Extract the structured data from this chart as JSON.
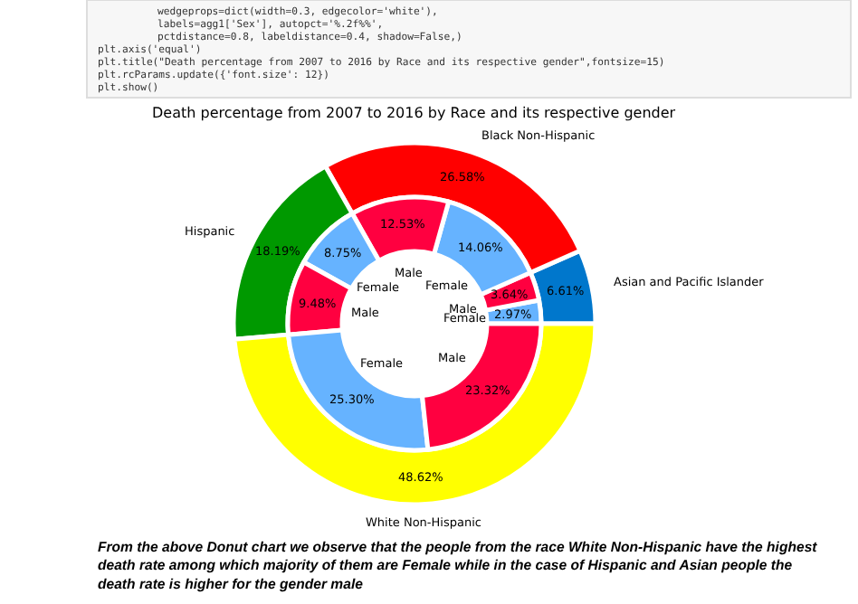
{
  "chart_data": [
    {
      "type": "donut",
      "title": "Death percentage from 2007 to 2016 by Race and its respective gender",
      "categories": [
        "Asian and Pacific Islander",
        "Black Non-Hispanic",
        "Hispanic",
        "White Non-Hispanic"
      ],
      "values": [
        6.61,
        26.58,
        18.19,
        48.62
      ],
      "colors": [
        "#0077cc",
        "#ff0000",
        "#009900",
        "#ffff00"
      ],
      "value_labels": [
        "6.61%",
        "26.58%",
        "18.19%",
        "48.62%"
      ],
      "annotations": [
        "        wedgeprops=dict(width=0.3, edgecolor='white'),",
        "        labels=agg1['Sex'], autopct='%.2f%%',",
        "        pctdistance=0.8, labeldistance=0.4, shadow=False,)",
        "plt.axis('equal')",
        "plt.title(\"Death percentage from 2007 to 2016 by Race and its respective gender\",fontsize=15)",
        "plt.rcParams.update({'font.size': 12})",
        "plt.show()",
        "From the above Donut chart we observe that the people from the race White Non-Hispanic have the highest death rate among which majority of them are Female while in the case of Hispanic and Asian people the death rate is higher for the gender male"
      ]
    },
    {
      "type": "donut",
      "categories": [
        "Female",
        "Male",
        "Female",
        "Male",
        "Female",
        "Male",
        "Female",
        "Male"
      ],
      "values": [
        2.97,
        3.64,
        14.06,
        12.53,
        8.75,
        9.48,
        25.3,
        23.32
      ],
      "colors": [
        "#66b3ff",
        "#ff0040",
        "#66b3ff",
        "#ff0040",
        "#66b3ff",
        "#ff0040",
        "#66b3ff",
        "#ff0040"
      ],
      "value_labels": [
        "2.97%",
        "3.64%",
        "14.06%",
        "12.53%",
        "8.75%",
        "9.48%",
        "25.30%",
        "23.32%"
      ]
    }
  ]
}
